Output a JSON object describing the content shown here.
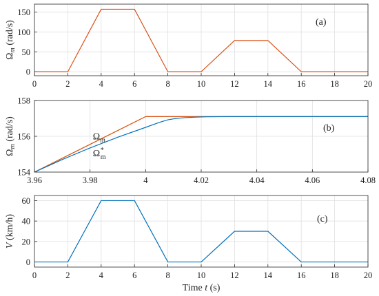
{
  "chart_data": [
    {
      "type": "line",
      "panel": "(a)",
      "ylabel": {
        "symbol": "Ω",
        "sub": "m",
        "unit": "(rad/s)"
      },
      "xlim": [
        0,
        20
      ],
      "ylim": [
        -10,
        170
      ],
      "xticks": [
        "0",
        "2",
        "4",
        "6",
        "8",
        "10",
        "12",
        "14",
        "16",
        "18",
        "20"
      ],
      "yticks": [
        "0",
        "50",
        "100",
        "150"
      ],
      "grid": true,
      "series": [
        {
          "color": "#d95319",
          "x": [
            0,
            2,
            4,
            6,
            8,
            10,
            12,
            14,
            16,
            20
          ],
          "y": [
            0,
            0,
            157.1,
            157.1,
            0,
            0,
            78.5,
            78.5,
            0,
            0
          ]
        }
      ]
    },
    {
      "type": "line",
      "panel": "(b)",
      "ylabel": {
        "symbol": "Ω",
        "sub": "m",
        "unit": "(rad/s)"
      },
      "xlim": [
        3.96,
        4.08
      ],
      "ylim": [
        154,
        158
      ],
      "xticks": [
        "3.96",
        "3.98",
        "4",
        "4.02",
        "4.04",
        "4.06",
        "4.08"
      ],
      "yticks": [
        "154",
        "156",
        "158"
      ],
      "grid": true,
      "annotations": [
        {
          "symbol": "Ω",
          "sub": "m",
          "sup": "",
          "x": 3.981,
          "y": 155.82
        },
        {
          "symbol": "Ω",
          "sub": "m",
          "sup": "*",
          "x": 3.981,
          "y": 154.88
        }
      ],
      "series": [
        {
          "color": "#edb120",
          "x": [
            3.96,
            4.0,
            4.08
          ],
          "y": [
            154.0,
            157.1,
            157.1
          ]
        },
        {
          "color": "#d95319",
          "x": [
            3.96,
            4.0,
            4.08
          ],
          "y": [
            154.0,
            157.1,
            157.1
          ]
        },
        {
          "color": "#0072bd",
          "x": [
            3.96,
            3.97,
            3.98,
            3.99,
            4.0,
            4.005,
            4.008,
            4.011,
            4.014,
            4.018,
            4.022,
            4.03,
            4.08
          ],
          "y": [
            154.0,
            154.7,
            155.35,
            155.95,
            156.5,
            156.78,
            156.92,
            157.0,
            157.04,
            157.07,
            157.09,
            157.1,
            157.1
          ]
        }
      ]
    },
    {
      "type": "line",
      "panel": "(c)",
      "ylabel": {
        "symbol": "V",
        "sub": "",
        "unit": "(km/h)"
      },
      "xlabel": {
        "text": "Time",
        "var": "t",
        "unit": "(s)"
      },
      "xlim": [
        0,
        20
      ],
      "ylim": [
        -5,
        65
      ],
      "xticks": [
        "0",
        "2",
        "4",
        "6",
        "8",
        "10",
        "12",
        "14",
        "16",
        "18",
        "20"
      ],
      "yticks": [
        "0",
        "20",
        "40",
        "60"
      ],
      "grid": true,
      "series": [
        {
          "color": "#0072bd",
          "x": [
            0,
            2,
            4,
            6,
            8,
            10,
            12,
            14,
            16,
            20
          ],
          "y": [
            0,
            0,
            60,
            60,
            0,
            0,
            30,
            30,
            0,
            0
          ]
        }
      ]
    }
  ]
}
